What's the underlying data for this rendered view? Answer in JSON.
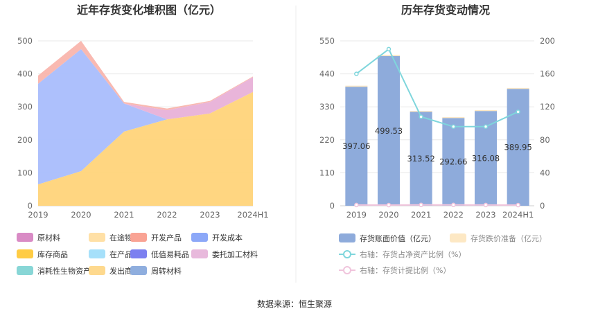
{
  "left_chart": {
    "title": "近年存货变化堆积图（亿元）",
    "legend": [
      {
        "label": "原材料",
        "color": "#d98bc5"
      },
      {
        "label": "在途物资",
        "color": "#ffe0a6"
      },
      {
        "label": "开发产品",
        "color": "#f9a394"
      },
      {
        "label": "开发成本",
        "color": "#8ca8f8"
      },
      {
        "label": "库存商品",
        "color": "#ffcc44"
      },
      {
        "label": "在产品",
        "color": "#a6e0fa"
      },
      {
        "label": "低值易耗品",
        "color": "#7c80f0"
      },
      {
        "label": "委托加工材料",
        "color": "#e8b9dc"
      },
      {
        "label": "消耗性生物资产",
        "color": "#88d6d6"
      },
      {
        "label": "发出商品",
        "color": "#fed98e"
      },
      {
        "label": "周转材料",
        "color": "#8faede"
      }
    ]
  },
  "right_chart": {
    "title": "历年存货变动情况",
    "legend": {
      "bar": "存货账面价值（亿元）",
      "bar2": "存货跌价准备（亿元）",
      "line1": "右轴：存货占净资产比例（%）",
      "line2": "右轴：存货计提比例（%）"
    }
  },
  "source_text": "数据来源：恒生聚源",
  "chart_data": [
    {
      "type": "area",
      "title": "近年存货变化堆积图（亿元）",
      "categories": [
        "2019",
        "2020",
        "2021",
        "2022",
        "2023",
        "2024H1"
      ],
      "ylim": [
        0,
        500
      ],
      "yticks": [
        0,
        100,
        200,
        300,
        400,
        500
      ],
      "stacked": true,
      "grid": true,
      "series": [
        {
          "name": "库存商品",
          "color": "#ffd47a",
          "values": [
            65,
            105,
            225,
            262,
            280,
            345
          ]
        },
        {
          "name": "开发成本",
          "color": "#a9bdfc",
          "values": [
            305,
            370,
            85,
            0,
            0,
            0
          ]
        },
        {
          "name": "委托加工材料",
          "color": "#e8b1d8",
          "values": [
            0,
            0,
            0,
            28,
            35,
            45
          ]
        },
        {
          "name": "开发产品",
          "color": "#f9b5ad",
          "values": [
            25,
            25,
            5,
            5,
            3,
            2
          ]
        }
      ]
    },
    {
      "type": "bar",
      "title": "历年存货变动情况",
      "categories": [
        "2019",
        "2020",
        "2021",
        "2022",
        "2023",
        "2024H1"
      ],
      "ylim": [
        0,
        550
      ],
      "yticks": [
        0,
        110,
        220,
        330,
        440,
        550
      ],
      "y2lim": [
        0,
        200
      ],
      "y2ticks": [
        0,
        40,
        80,
        120,
        160,
        200
      ],
      "grid": true,
      "series": [
        {
          "name": "存货账面价值（亿元）",
          "axis": "left",
          "type": "bar",
          "color": "#8eabdb",
          "values": [
            397.06,
            499.53,
            313.52,
            292.66,
            316.08,
            389.95
          ],
          "labels": [
            "397.06",
            "499.53",
            "313.52",
            "292.66",
            "316.08",
            "389.95"
          ]
        },
        {
          "name": "存货跌价准备（亿元）",
          "axis": "left",
          "type": "bar",
          "color": "#fde8c4",
          "values": [
            3.5,
            4.0,
            3.0,
            3.0,
            2.8,
            3.2
          ]
        },
        {
          "name": "右轴：存货占净资产比例（%）",
          "axis": "right",
          "type": "line",
          "color": "#7fd6dc",
          "values": [
            160,
            190,
            108,
            96,
            96,
            114
          ]
        },
        {
          "name": "右轴：存货计提比例（%）",
          "axis": "right",
          "type": "line",
          "color": "#f0c4dc",
          "values": [
            0.9,
            0.8,
            1.0,
            1.0,
            0.9,
            0.8
          ]
        }
      ]
    }
  ]
}
